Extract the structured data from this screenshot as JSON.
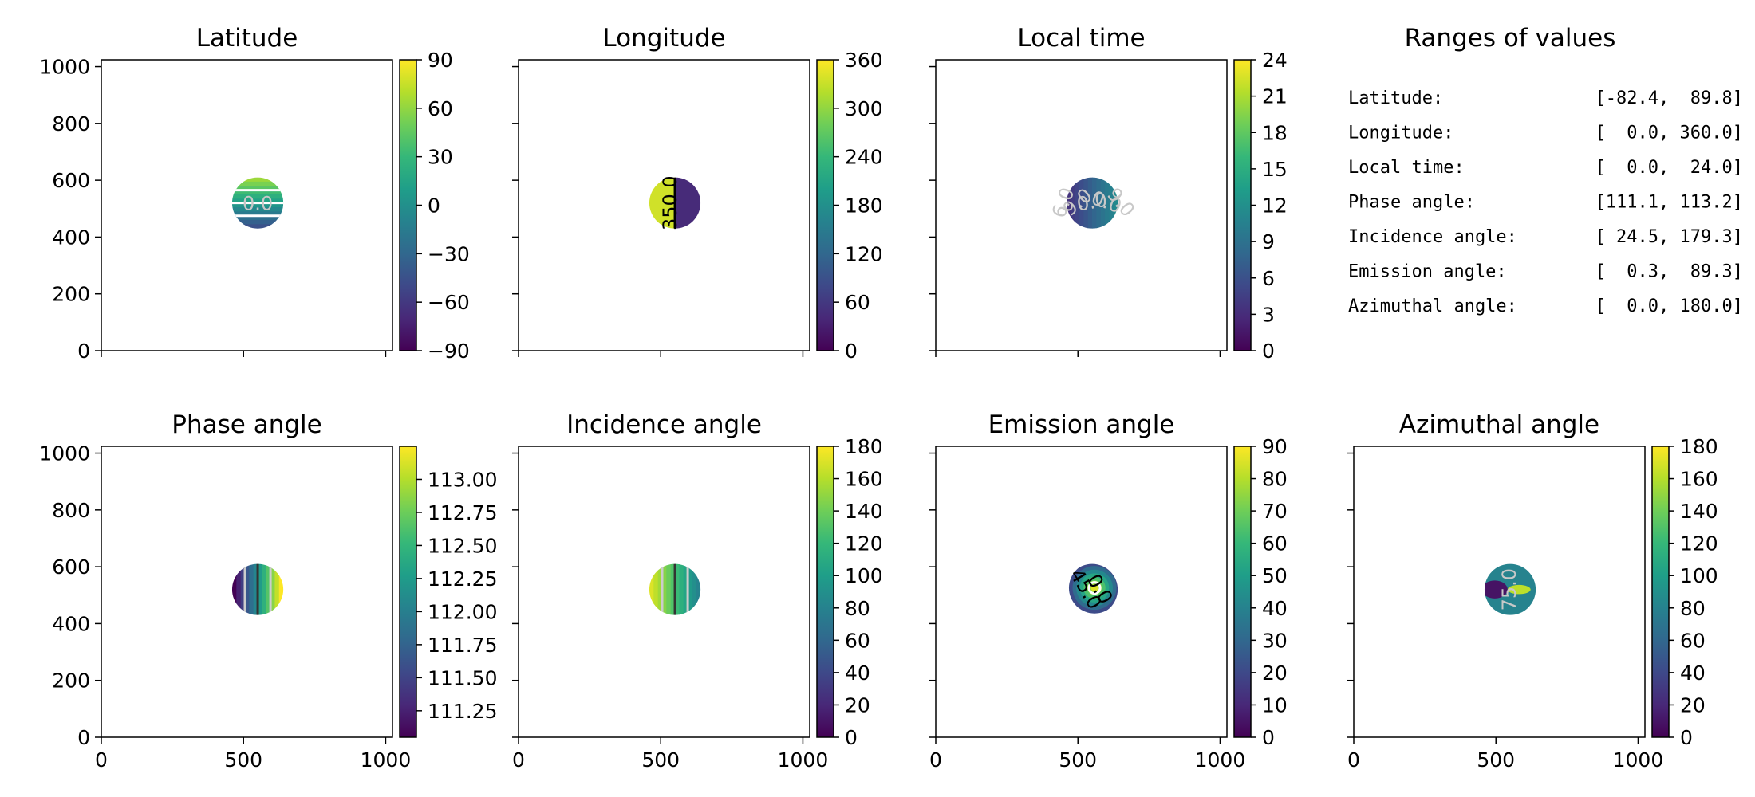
{
  "chart_data": [
    {
      "type": "heatmap",
      "title": "Latitude",
      "xlim": [
        0,
        1024
      ],
      "ylim": [
        0,
        1024
      ],
      "x_ticks": [
        "",
        "",
        ""
      ],
      "y_ticks": [
        "0",
        "200",
        "400",
        "600",
        "800",
        "1000"
      ],
      "colorbar": {
        "min": -90,
        "max": 90,
        "ticks": [
          "−90",
          "−60",
          "−30",
          "0",
          "30",
          "60",
          "90"
        ]
      },
      "disc": {
        "cx": 550,
        "cy": 520,
        "r": 90
      },
      "contour_labels": [
        "0.0"
      ]
    },
    {
      "type": "heatmap",
      "title": "Longitude",
      "xlim": [
        0,
        1024
      ],
      "ylim": [
        0,
        1024
      ],
      "x_ticks": [
        "",
        "",
        ""
      ],
      "y_ticks": [
        "",
        "",
        "",
        "",
        "",
        ""
      ],
      "colorbar": {
        "min": 0,
        "max": 360,
        "ticks": [
          "0",
          "60",
          "120",
          "180",
          "240",
          "300",
          "360"
        ]
      },
      "disc": {
        "cx": 550,
        "cy": 520,
        "r": 90
      },
      "contour_labels": [
        "350.0"
      ]
    },
    {
      "type": "heatmap",
      "title": "Local time",
      "xlim": [
        0,
        1024
      ],
      "ylim": [
        0,
        1024
      ],
      "x_ticks": [
        "",
        "",
        ""
      ],
      "y_ticks": [
        "",
        "",
        "",
        "",
        "",
        ""
      ],
      "colorbar": {
        "min": 0,
        "max": 24,
        "ticks": [
          "0",
          "3",
          "6",
          "9",
          "12",
          "15",
          "18",
          "21",
          "24"
        ]
      },
      "disc": {
        "cx": 550,
        "cy": 520,
        "r": 90
      },
      "contour_labels": [
        "6.0",
        "9.0",
        "0.0",
        "0.0",
        "9.0"
      ]
    },
    {
      "type": "heatmap",
      "title": "Phase angle",
      "xlim": [
        0,
        1024
      ],
      "ylim": [
        0,
        1024
      ],
      "x_ticks": [
        "0",
        "500",
        "1000"
      ],
      "y_ticks": [
        "0",
        "200",
        "400",
        "600",
        "800",
        "1000"
      ],
      "colorbar": {
        "min": 111.05,
        "max": 113.25,
        "ticks": [
          "111.25",
          "111.50",
          "111.75",
          "112.00",
          "112.25",
          "112.50",
          "112.75",
          "113.00"
        ]
      },
      "disc": {
        "cx": 550,
        "cy": 520,
        "r": 90
      },
      "contour_labels": []
    },
    {
      "type": "heatmap",
      "title": "Incidence angle",
      "xlim": [
        0,
        1024
      ],
      "ylim": [
        0,
        1024
      ],
      "x_ticks": [
        "0",
        "500",
        "1000"
      ],
      "y_ticks": [
        "",
        "",
        "",
        "",
        "",
        ""
      ],
      "colorbar": {
        "min": 0,
        "max": 180,
        "ticks": [
          "0",
          "20",
          "40",
          "60",
          "80",
          "100",
          "120",
          "140",
          "160",
          "180"
        ]
      },
      "disc": {
        "cx": 550,
        "cy": 520,
        "r": 90
      },
      "contour_labels": []
    },
    {
      "type": "heatmap",
      "title": "Emission angle",
      "xlim": [
        0,
        1024
      ],
      "ylim": [
        0,
        1024
      ],
      "x_ticks": [
        "0",
        "500",
        "1000"
      ],
      "y_ticks": [
        "",
        "",
        "",
        "",
        "",
        ""
      ],
      "colorbar": {
        "min": 0,
        "max": 90,
        "ticks": [
          "0",
          "10",
          "20",
          "30",
          "40",
          "50",
          "60",
          "70",
          "80",
          "90"
        ]
      },
      "disc": {
        "cx": 550,
        "cy": 520,
        "r": 90
      },
      "contour_labels": [
        "45.0",
        "0.0"
      ]
    },
    {
      "type": "heatmap",
      "title": "Azimuthal angle",
      "xlim": [
        0,
        1024
      ],
      "ylim": [
        0,
        1024
      ],
      "x_ticks": [
        "0",
        "500",
        "1000"
      ],
      "y_ticks": [
        "",
        "",
        "",
        "",
        "",
        ""
      ],
      "colorbar": {
        "min": 0,
        "max": 180,
        "ticks": [
          "0",
          "20",
          "40",
          "60",
          "80",
          "100",
          "120",
          "140",
          "160",
          "180"
        ]
      },
      "disc": {
        "cx": 550,
        "cy": 520,
        "r": 90
      },
      "contour_labels": [
        "75.0"
      ]
    }
  ],
  "ranges_panel": {
    "title": "Ranges of values",
    "rows": [
      {
        "label": "Latitude:",
        "value": "[-82.4,  89.8]"
      },
      {
        "label": "Longitude:",
        "value": "[  0.0, 360.0]"
      },
      {
        "label": "Local time:",
        "value": "[  0.0,  24.0]"
      },
      {
        "label": "Phase angle:",
        "value": "[111.1, 113.2]"
      },
      {
        "label": "Incidence angle:",
        "value": "[ 24.5, 179.3]"
      },
      {
        "label": "Emission angle:",
        "value": "[  0.3,  89.3]"
      },
      {
        "label": "Azimuthal angle:",
        "value": "[  0.0, 180.0]"
      }
    ]
  },
  "colors": {
    "colormap": [
      "#440154",
      "#482878",
      "#3e4989",
      "#31688e",
      "#26828e",
      "#1f9e89",
      "#35b779",
      "#6ece58",
      "#b5de2b",
      "#fde725"
    ],
    "contour_dark": "#000000",
    "contour_light": "#c8c8c8"
  }
}
